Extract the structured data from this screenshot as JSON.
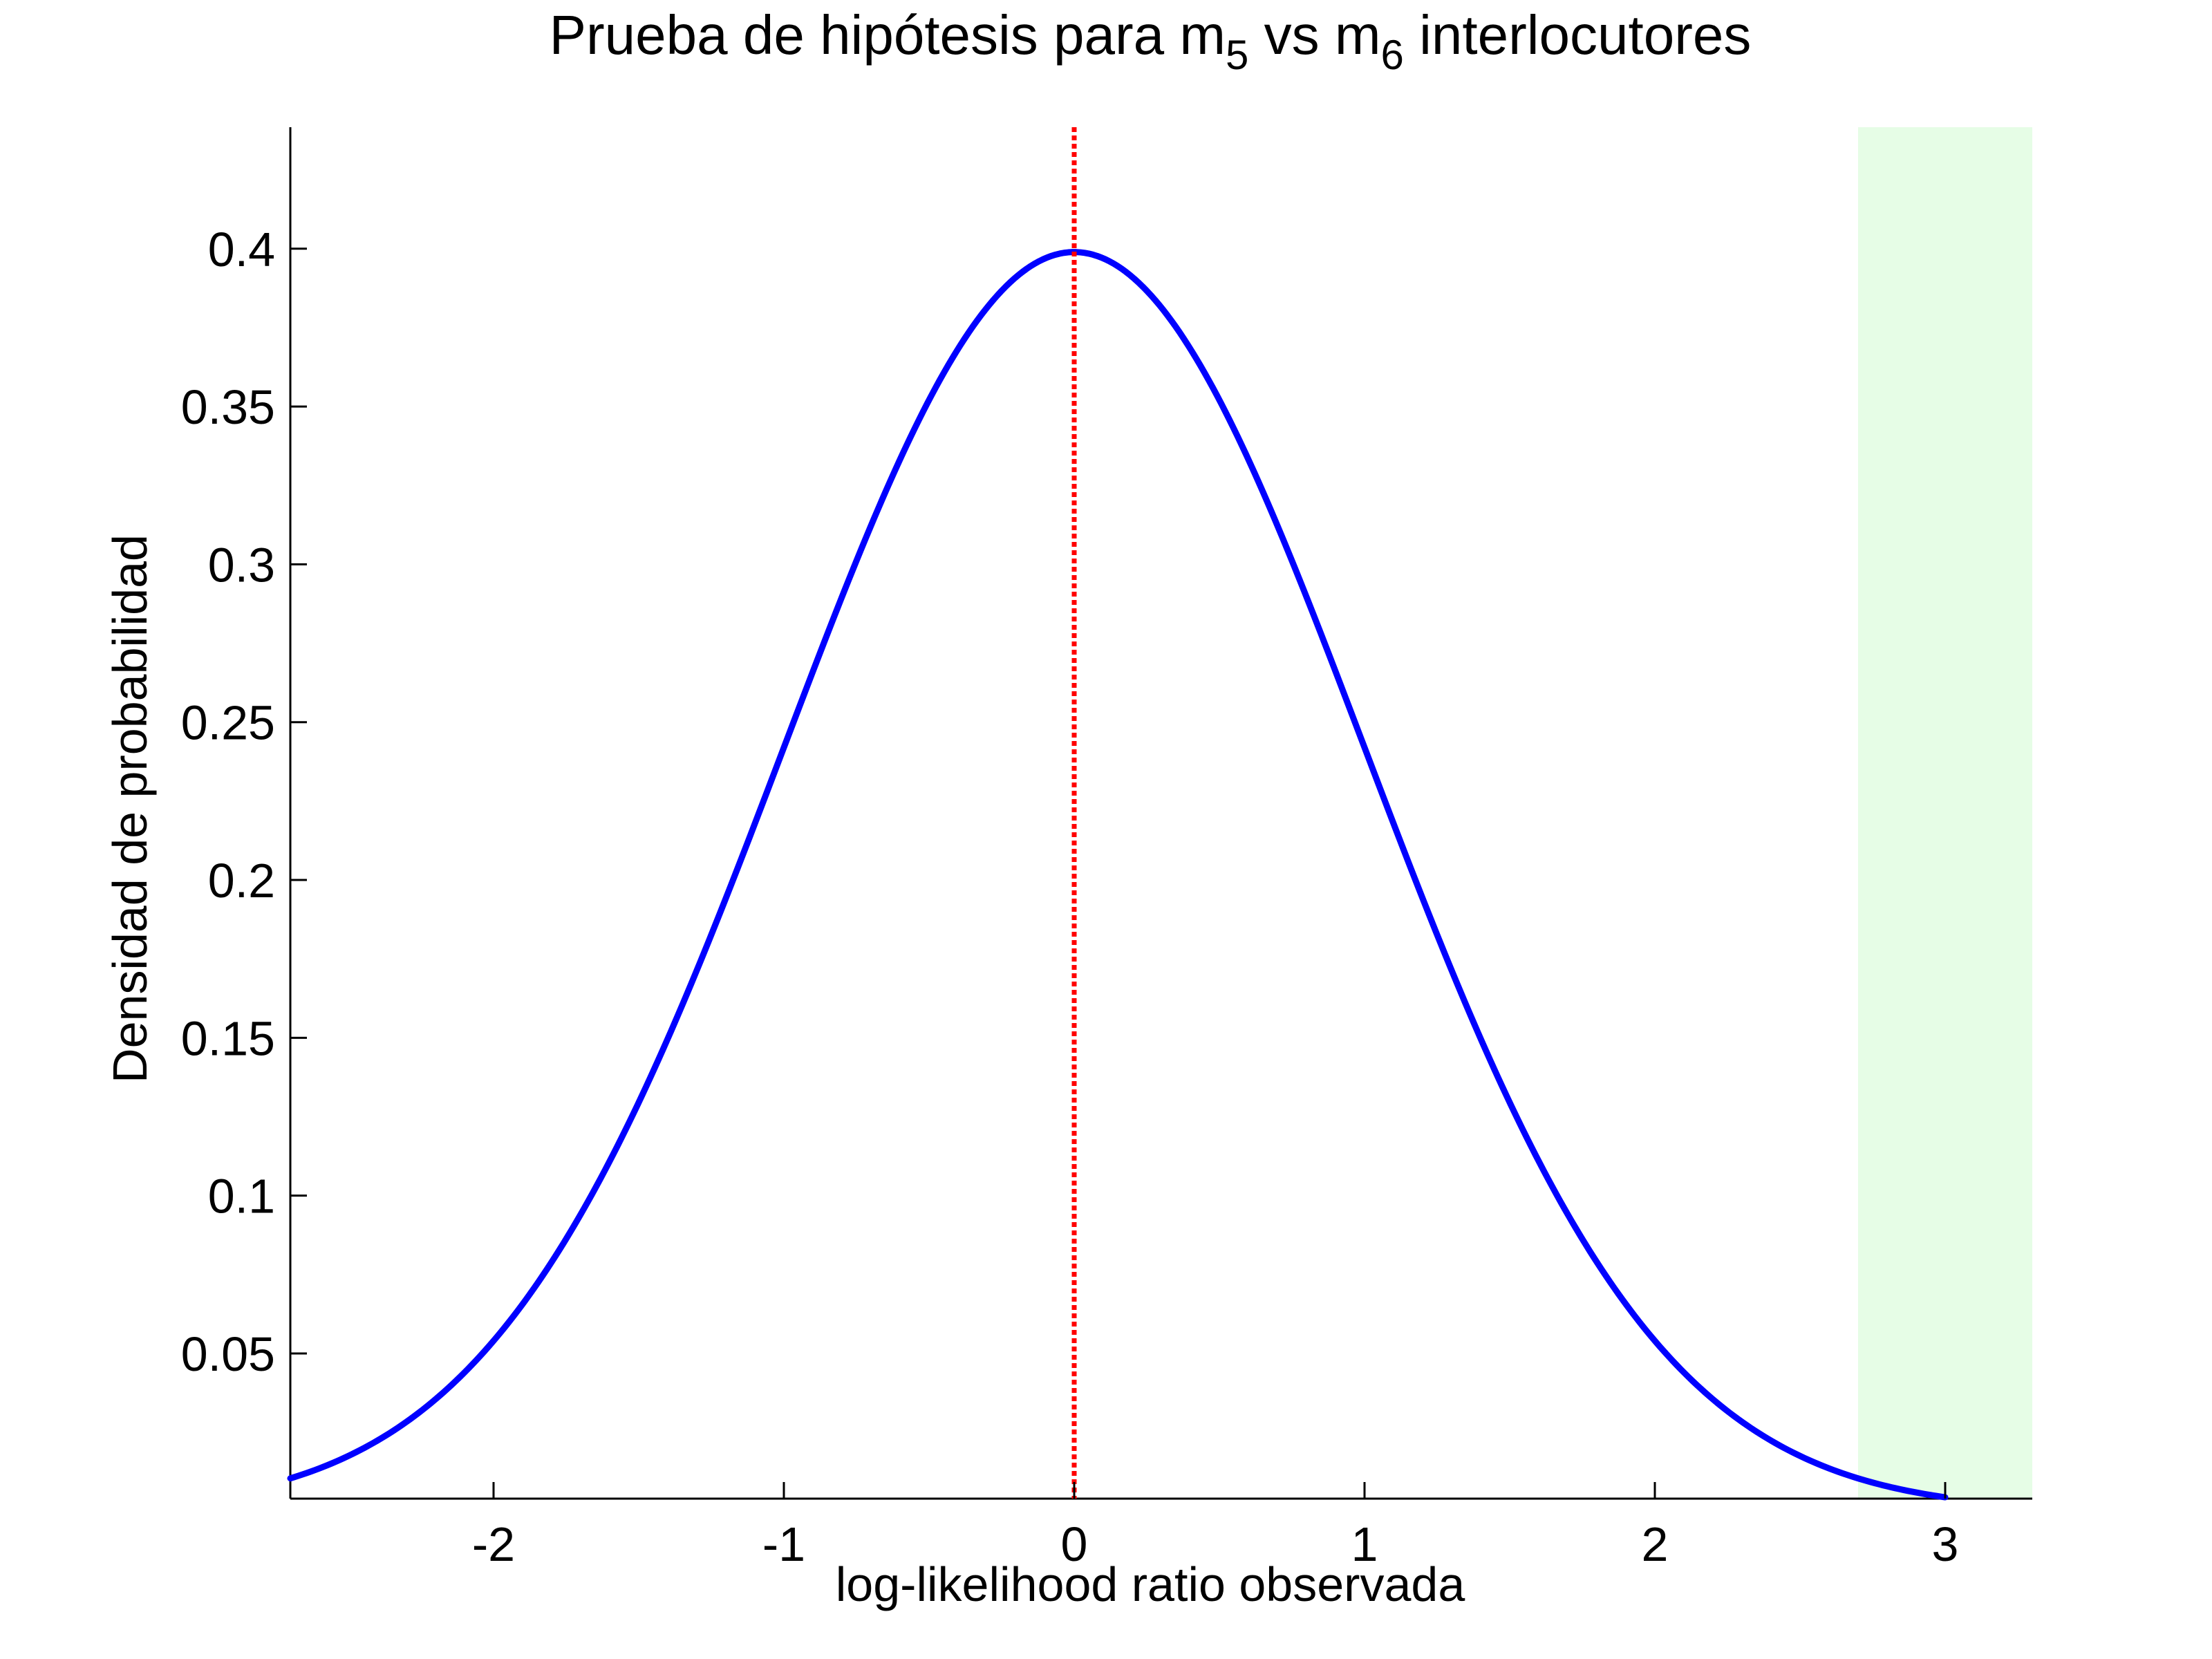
{
  "chart_data": {
    "type": "line",
    "title": {
      "parts": [
        {
          "text": "Prueba de hipótesis para m",
          "sub": false
        },
        {
          "text": "5",
          "sub": true
        },
        {
          "text": " vs m",
          "sub": false
        },
        {
          "text": "6",
          "sub": true
        },
        {
          "text": " interlocutores",
          "sub": false
        }
      ]
    },
    "xlabel": "log-likelihood ratio observada",
    "ylabel": "Densidad de probabilidad",
    "xlim": [
      -2.7,
      3.3
    ],
    "ylim": [
      0.004,
      0.4385
    ],
    "xticks": [
      -2,
      -1,
      0,
      1,
      2,
      3
    ],
    "xtick_labels": [
      "-2",
      "-1",
      "0",
      "1",
      "2",
      "3"
    ],
    "yticks": [
      0.05,
      0.1,
      0.15,
      0.2,
      0.25,
      0.3,
      0.35,
      0.4
    ],
    "ytick_labels": [
      "0.05",
      "0.1",
      "0.15",
      "0.2",
      "0.25",
      "0.3",
      "0.35",
      "0.4"
    ],
    "grid": false,
    "series": [
      {
        "kind": "normal-pdf",
        "mean": 0,
        "std": 1,
        "x_range": [
          -2.7,
          3.0
        ],
        "color": "#0000ff"
      }
    ],
    "vline": {
      "x": 0,
      "style": "dotted",
      "color": "#ff0000"
    },
    "shaded_region": {
      "x_range": [
        2.7,
        3.3
      ],
      "color": "#e6fde6"
    }
  }
}
